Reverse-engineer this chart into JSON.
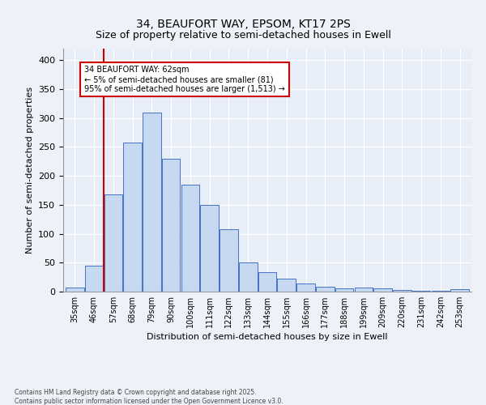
{
  "title1": "34, BEAUFORT WAY, EPSOM, KT17 2PS",
  "title2": "Size of property relative to semi-detached houses in Ewell",
  "xlabel": "Distribution of semi-detached houses by size in Ewell",
  "ylabel": "Number of semi-detached properties",
  "categories": [
    "35sqm",
    "46sqm",
    "57sqm",
    "68sqm",
    "79sqm",
    "90sqm",
    "100sqm",
    "111sqm",
    "122sqm",
    "133sqm",
    "144sqm",
    "155sqm",
    "166sqm",
    "177sqm",
    "188sqm",
    "199sqm",
    "209sqm",
    "220sqm",
    "231sqm",
    "242sqm",
    "253sqm"
  ],
  "values": [
    7,
    45,
    168,
    258,
    310,
    230,
    185,
    150,
    108,
    50,
    33,
    22,
    14,
    8,
    5,
    7,
    5,
    3,
    2,
    1,
    4
  ],
  "bar_color": "#c6d9f0",
  "bar_edge_color": "#4472c4",
  "annotation_title": "34 BEAUFORT WAY: 62sqm",
  "annotation_line1": "← 5% of semi-detached houses are smaller (81)",
  "annotation_line2": "95% of semi-detached houses are larger (1,513) →",
  "annotation_box_color": "#ffffff",
  "annotation_box_edge": "#cc0000",
  "vline_color": "#cc0000",
  "vline_x": 1.5,
  "ylim": [
    0,
    420
  ],
  "yticks": [
    0,
    50,
    100,
    150,
    200,
    250,
    300,
    350,
    400
  ],
  "footer1": "Contains HM Land Registry data © Crown copyright and database right 2025.",
  "footer2": "Contains public sector information licensed under the Open Government Licence v3.0.",
  "bg_color": "#eef2f8",
  "plot_bg_color": "#e8eef8"
}
